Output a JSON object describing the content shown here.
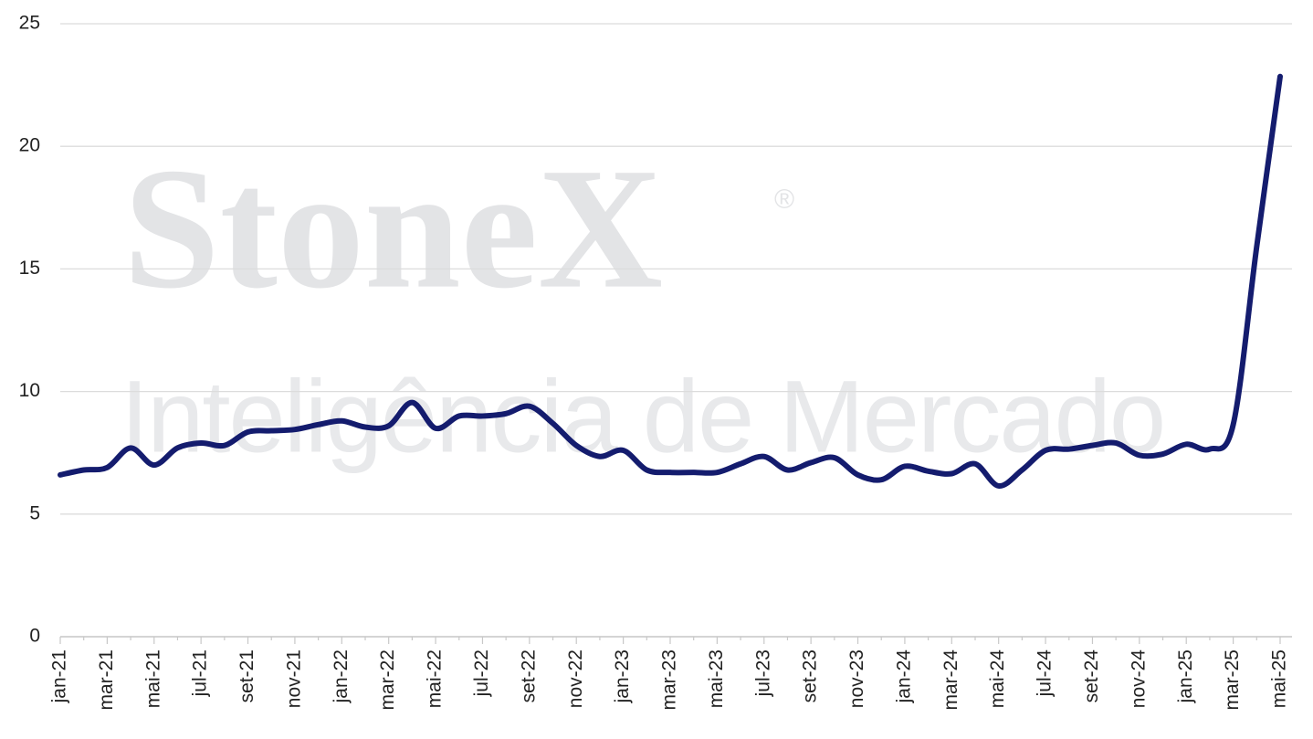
{
  "chart_data": {
    "type": "line",
    "watermark": {
      "brand": "StoneX",
      "mark": "®",
      "tagline": "Inteligência de Mercado"
    },
    "categories": [
      "jan-21",
      null,
      "mar-21",
      null,
      "mai-21",
      null,
      "jul-21",
      null,
      "set-21",
      null,
      "nov-21",
      null,
      "jan-22",
      null,
      "mar-22",
      null,
      "mai-22",
      null,
      "jul-22",
      null,
      "set-22",
      null,
      "nov-22",
      null,
      "jan-23",
      null,
      "mar-23",
      null,
      "mai-23",
      null,
      "jul-23",
      null,
      "set-23",
      null,
      "nov-23",
      null,
      "jan-24",
      null,
      "mar-24",
      null,
      "mai-24",
      null,
      "jul-24",
      null,
      "set-24",
      null,
      "nov-24",
      null,
      "jan-25",
      null,
      "mar-25",
      null,
      "mai-25"
    ],
    "values": [
      6.6,
      6.8,
      6.9,
      7.7,
      7.0,
      7.7,
      7.9,
      7.8,
      8.35,
      8.4,
      8.45,
      8.65,
      8.8,
      8.55,
      8.6,
      9.55,
      8.5,
      9.0,
      9.0,
      9.1,
      9.4,
      8.7,
      7.8,
      7.35,
      7.6,
      6.8,
      6.7,
      6.7,
      6.7,
      7.05,
      7.35,
      6.8,
      7.1,
      7.3,
      6.6,
      6.4,
      6.95,
      6.75,
      6.65,
      7.05,
      6.15,
      6.8,
      7.6,
      7.65,
      7.8,
      7.9,
      7.4,
      7.45,
      7.85,
      7.65,
      8.65,
      15.9,
      22.85
    ],
    "color": "#141c6e",
    "ylim": [
      0,
      25
    ],
    "yticks": [
      0,
      5,
      10,
      15,
      20,
      25
    ],
    "grid": true
  }
}
